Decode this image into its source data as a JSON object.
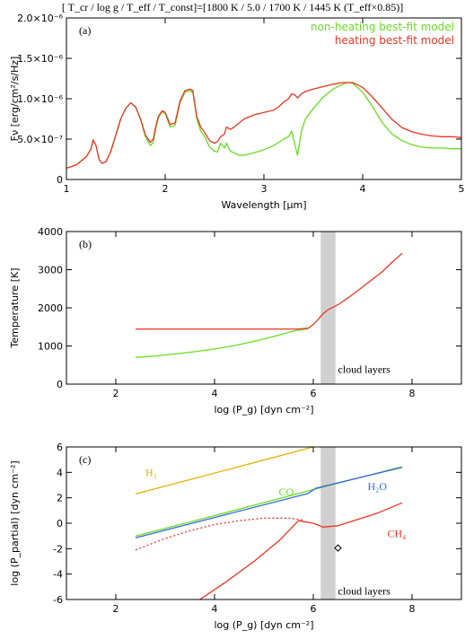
{
  "header": {
    "title": "[ T_cr / log g / T_eff / T_const]=[1800 K / 5.0 / 1700 K / 1445 K (T_eff×0.85)]"
  },
  "chart_data": [
    {
      "type": "line",
      "panel_label": "(a)",
      "xlabel": "Wavelength [μm]",
      "ylabel": "Fν [erg/cm²/s/Hz]",
      "xlim": [
        1,
        5
      ],
      "ylim": [
        0,
        2e-06
      ],
      "x_ticks": [
        1,
        2,
        3,
        4,
        5
      ],
      "y_ticks": [
        {
          "value": 0,
          "label": "0"
        },
        {
          "value": 5e-07,
          "label": "5.0×10⁻⁷"
        },
        {
          "value": 1e-06,
          "label": "1.0×10⁻⁶"
        },
        {
          "value": 1.5e-06,
          "label": "1.5×10⁻⁶"
        },
        {
          "value": 2e-06,
          "label": "2.0×10⁻⁶"
        }
      ],
      "legend": {
        "placement": "top-right",
        "entries": [
          {
            "label": "non-heating best-fit model",
            "color": "#66dd22"
          },
          {
            "label": "heating best-fit model",
            "color": "#ee3322"
          }
        ]
      },
      "series": [
        {
          "name": "non-heating best-fit model",
          "color": "#66dd22",
          "x": [
            1.0,
            1.1,
            1.2,
            1.25,
            1.27,
            1.3,
            1.33,
            1.36,
            1.4,
            1.45,
            1.5,
            1.55,
            1.6,
            1.65,
            1.7,
            1.75,
            1.8,
            1.85,
            1.88,
            1.9,
            1.93,
            1.97,
            2.0,
            2.05,
            2.1,
            2.15,
            2.2,
            2.25,
            2.28,
            2.32,
            2.36,
            2.4,
            2.45,
            2.5,
            2.53,
            2.56,
            2.6,
            2.62,
            2.66,
            2.7,
            2.75,
            2.8,
            2.9,
            3.0,
            3.1,
            3.15,
            3.2,
            3.25,
            3.28,
            3.31,
            3.34,
            3.38,
            3.42,
            3.5,
            3.6,
            3.7,
            3.8,
            3.85,
            3.9,
            4.0,
            4.1,
            4.2,
            4.3,
            4.4,
            4.5,
            4.6,
            4.7,
            4.8,
            4.9,
            5.0
          ],
          "y": [
            1.4e-07,
            1.8e-07,
            2.8e-07,
            3.8e-07,
            4.9e-07,
            4.2e-07,
            2.5e-07,
            2e-07,
            2.2e-07,
            3.5e-07,
            5.5e-07,
            7.5e-07,
            8.8e-07,
            9.5e-07,
            9e-07,
            7.5e-07,
            5.3e-07,
            4.2e-07,
            4.6e-07,
            6e-07,
            7.6e-07,
            8.4e-07,
            8.2e-07,
            6.5e-07,
            6.7e-07,
            9.5e-07,
            1.08e-06,
            1.1e-06,
            1.08e-06,
            7.5e-07,
            6e-07,
            5.3e-07,
            4e-07,
            3.5e-07,
            3.4e-07,
            4.5e-07,
            3.9e-07,
            4.5e-07,
            3.5e-07,
            3.3e-07,
            3e-07,
            3e-07,
            3.3e-07,
            3.7e-07,
            4.2e-07,
            4.6e-07,
            5e-07,
            5.3e-07,
            6e-07,
            4.5e-07,
            3e-07,
            6e-07,
            7.5e-07,
            8.8e-07,
            1.02e-06,
            1.12e-06,
            1.18e-06,
            1.2e-06,
            1.19e-06,
            1.08e-06,
            9e-07,
            7e-07,
            5.6e-07,
            4.8e-07,
            4.3e-07,
            4e-07,
            3.9e-07,
            3.9e-07,
            3.8e-07,
            3.8e-07
          ]
        },
        {
          "name": "heating best-fit model",
          "color": "#ee3322",
          "x": [
            1.0,
            1.1,
            1.2,
            1.25,
            1.27,
            1.3,
            1.33,
            1.36,
            1.4,
            1.45,
            1.5,
            1.55,
            1.6,
            1.65,
            1.7,
            1.75,
            1.8,
            1.85,
            1.88,
            1.9,
            1.93,
            1.97,
            2.0,
            2.05,
            2.1,
            2.15,
            2.2,
            2.25,
            2.28,
            2.32,
            2.36,
            2.4,
            2.45,
            2.5,
            2.53,
            2.56,
            2.6,
            2.62,
            2.66,
            2.7,
            2.75,
            2.8,
            2.9,
            3.0,
            3.1,
            3.15,
            3.2,
            3.25,
            3.28,
            3.31,
            3.34,
            3.38,
            3.42,
            3.5,
            3.6,
            3.7,
            3.8,
            3.85,
            3.9,
            4.0,
            4.1,
            4.2,
            4.3,
            4.4,
            4.5,
            4.6,
            4.7,
            4.8,
            4.9,
            5.0
          ],
          "y": [
            1.4e-07,
            1.8e-07,
            2.8e-07,
            3.8e-07,
            4.9e-07,
            4.2e-07,
            2.5e-07,
            2e-07,
            2.2e-07,
            3.5e-07,
            5.5e-07,
            7.5e-07,
            8.8e-07,
            9.5e-07,
            9e-07,
            7.5e-07,
            5.5e-07,
            4.6e-07,
            5e-07,
            6.3e-07,
            7.8e-07,
            8.5e-07,
            8.3e-07,
            6.8e-07,
            7e-07,
            9.7e-07,
            1.1e-06,
            1.12e-06,
            1.1e-06,
            7.8e-07,
            6.5e-07,
            5.8e-07,
            4.8e-07,
            4.5e-07,
            4.7e-07,
            5.3e-07,
            5.6e-07,
            6.5e-07,
            6.2e-07,
            6.5e-07,
            7e-07,
            7.5e-07,
            8e-07,
            8.3e-07,
            8.6e-07,
            9e-07,
            9.6e-07,
            1e-06,
            1.06e-06,
            1.05e-06,
            1.01e-06,
            1.06e-06,
            1.09e-06,
            1.12e-06,
            1.15e-06,
            1.18e-06,
            1.2e-06,
            1.2e-06,
            1.2e-06,
            1.14e-06,
            1.02e-06,
            8.8e-07,
            7.4e-07,
            6.4e-07,
            5.9e-07,
            5.6e-07,
            5.4e-07,
            5.3e-07,
            5.3e-07,
            5.2e-07
          ]
        }
      ]
    },
    {
      "type": "line",
      "panel_label": "(b)",
      "xlabel": "log (P_g) [dyn cm⁻²]",
      "ylabel": "Temperature [K]",
      "xlim": [
        1,
        9
      ],
      "ylim": [
        0,
        4000
      ],
      "x_ticks": [
        2,
        4,
        6,
        8
      ],
      "y_ticks": [
        0,
        1000,
        2000,
        3000,
        4000
      ],
      "shaded_band": {
        "x": [
          6.15,
          6.45
        ],
        "color": "#d0d0d0"
      },
      "annotations": [
        {
          "text": "cloud layers",
          "x": 6.5,
          "y": 300
        }
      ],
      "series": [
        {
          "color": "#66dd22",
          "x": [
            2.4,
            2.8,
            3.2,
            3.6,
            4.0,
            4.4,
            4.8,
            5.2,
            5.6,
            5.9
          ],
          "y": [
            700,
            740,
            790,
            850,
            920,
            1010,
            1120,
            1250,
            1390,
            1450
          ]
        },
        {
          "color": "#ee3322",
          "x": [
            2.4,
            3.0,
            4.0,
            5.0,
            5.7,
            5.9,
            6.0,
            6.1,
            6.2,
            6.3,
            6.5,
            6.8,
            7.1,
            7.4,
            7.6,
            7.8
          ],
          "y": [
            1445,
            1445,
            1445,
            1445,
            1445,
            1470,
            1560,
            1700,
            1850,
            1950,
            2080,
            2350,
            2650,
            2950,
            3200,
            3430
          ]
        }
      ]
    },
    {
      "type": "line",
      "panel_label": "(c)",
      "xlabel": "log (P_g) [dyn cm⁻²]",
      "ylabel": "log (P_partial) [dyn cm⁻²]",
      "xlim": [
        1,
        9
      ],
      "ylim": [
        -6,
        6
      ],
      "x_ticks": [
        2,
        4,
        6,
        8
      ],
      "y_ticks": [
        -6,
        -4,
        -2,
        0,
        2,
        4,
        6
      ],
      "shaded_band": {
        "x": [
          6.15,
          6.45
        ],
        "color": "#d0d0d0"
      },
      "annotations": [
        {
          "text": "cloud layers",
          "x": 6.5,
          "y": -5.6,
          "color": "#000000"
        },
        {
          "text": "H₂",
          "x": 2.6,
          "y": 3.7,
          "color": "#e8b000"
        },
        {
          "text": "CO",
          "x": 5.3,
          "y": 2.2,
          "color": "#66dd22"
        },
        {
          "text": "H₂O",
          "x": 7.1,
          "y": 2.6,
          "color": "#3366dd"
        },
        {
          "text": "CH₄",
          "x": 7.5,
          "y": -1.1,
          "color": "#ee3322"
        }
      ],
      "marker": {
        "symbol": "diamond",
        "x": 6.5,
        "y": -1.95
      },
      "series": [
        {
          "color": "#e8b000",
          "dash": "solid",
          "x": [
            2.4,
            6.0
          ],
          "y": [
            2.3,
            6.0
          ]
        },
        {
          "color": "#66dd22",
          "dash": "solid",
          "x": [
            2.4,
            4.0,
            6.0,
            7.8
          ],
          "y": [
            -1.0,
            0.6,
            2.65,
            4.45
          ]
        },
        {
          "color": "#3366dd",
          "dash": "solid",
          "x": [
            2.4,
            4.0,
            5.9,
            6.05,
            7.8
          ],
          "y": [
            -1.15,
            0.45,
            2.35,
            2.75,
            4.4
          ]
        },
        {
          "color": "#ee3322",
          "dash": "dotted",
          "x": [
            2.4,
            3.0,
            3.5,
            4.0,
            4.5,
            5.0,
            5.5,
            5.8
          ],
          "y": [
            -2.1,
            -1.2,
            -0.6,
            -0.1,
            0.2,
            0.4,
            0.4,
            0.25
          ]
        },
        {
          "color": "#ee3322",
          "dash": "solid",
          "x": [
            3.7,
            4.2,
            4.8,
            5.3,
            5.7,
            6.0,
            6.2,
            6.5,
            6.9,
            7.3,
            7.8
          ],
          "y": [
            -6.0,
            -4.7,
            -3.0,
            -1.4,
            0.2,
            0.0,
            -0.3,
            -0.2,
            0.3,
            0.8,
            1.6
          ]
        }
      ]
    }
  ]
}
